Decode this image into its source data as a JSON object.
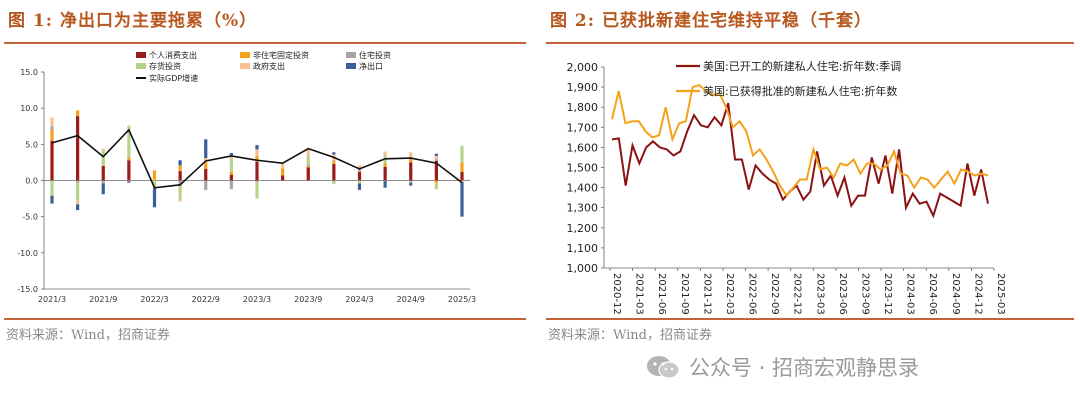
{
  "left": {
    "title": "图 1: 净出口为主要拖累（%）",
    "source": "资料来源：Wind，招商证券",
    "chart_data": {
      "type": "bar",
      "stacked": true,
      "categories": [
        "2021/3",
        "2021/6",
        "2021/9",
        "2021/12",
        "2022/3",
        "2022/6",
        "2022/9",
        "2022/12",
        "2023/3",
        "2023/6",
        "2023/9",
        "2023/12",
        "2024/3",
        "2024/6",
        "2024/9",
        "2024/12",
        "2025/3"
      ],
      "tick_labels": [
        "2021/3",
        "2021/9",
        "2022/3",
        "2022/9",
        "2023/3",
        "2023/9",
        "2024/3",
        "2024/9",
        "2025/3"
      ],
      "series": [
        {
          "name": "个人消费支出",
          "color": "#9c1a1a",
          "values": [
            5.5,
            8.9,
            2.0,
            2.8,
            0.0,
            1.3,
            1.6,
            0.8,
            2.6,
            0.7,
            1.8,
            2.3,
            1.2,
            1.9,
            2.5,
            2.7,
            1.2
          ]
        },
        {
          "name": "非住宅固定投资",
          "color": "#f5a21b",
          "values": [
            1.5,
            0.8,
            0.1,
            0.4,
            1.4,
            0.8,
            0.9,
            0.4,
            0.8,
            1.0,
            0.2,
            0.4,
            0.1,
            0.5,
            0.5,
            -0.3,
            1.3
          ]
        },
        {
          "name": "住宅投资",
          "color": "#a6a6a6",
          "values": [
            0.5,
            -0.3,
            -0.4,
            0.1,
            0.0,
            -0.8,
            -1.3,
            -1.2,
            -0.2,
            0.0,
            0.2,
            0.1,
            0.5,
            -0.1,
            -0.2,
            0.2,
            0.0
          ]
        },
        {
          "name": "存货投资",
          "color": "#b5d48a",
          "values": [
            -2.1,
            -2.5,
            2.0,
            4.3,
            -0.7,
            -1.8,
            0.0,
            1.6,
            -2.3,
            0.0,
            1.2,
            -0.5,
            -0.4,
            1.1,
            -0.1,
            -0.9,
            2.3
          ]
        },
        {
          "name": "政府支出",
          "color": "#f7c08f",
          "values": [
            1.2,
            -0.5,
            0.3,
            -0.1,
            -0.4,
            -0.3,
            0.6,
            0.7,
            0.9,
            0.6,
            1.0,
            0.8,
            0.3,
            0.5,
            0.9,
            0.5,
            -0.2
          ]
        },
        {
          "name": "净出口",
          "color": "#3a5f9a",
          "values": [
            -1.1,
            -0.8,
            -1.5,
            -0.2,
            -2.6,
            0.7,
            2.6,
            0.3,
            0.6,
            0.0,
            0.0,
            0.3,
            -0.9,
            -0.9,
            -0.4,
            0.3,
            -4.8
          ]
        }
      ],
      "line": {
        "name": "实际GDP增速",
        "color": "#111111",
        "values": [
          5.2,
          6.2,
          3.3,
          7.0,
          -1.0,
          -0.6,
          2.7,
          3.4,
          2.8,
          2.4,
          4.4,
          3.2,
          1.6,
          3.0,
          3.1,
          2.4,
          -0.3
        ]
      },
      "ylim": [
        -15,
        15
      ],
      "yticks": [
        "15.0",
        "10.0",
        "5.0",
        "0.0",
        "-5.0",
        "-10.0",
        "-15.0"
      ]
    }
  },
  "right": {
    "title": "图 2: 已获批新建住宅维持平稳（千套）",
    "source": "资料来源：Wind，招商证券",
    "chart_data": {
      "type": "line",
      "x_tick_labels": [
        "2020-12",
        "2021-03",
        "2021-06",
        "2021-09",
        "2021-12",
        "2022-03",
        "2022-06",
        "2022-09",
        "2022-12",
        "2023-03",
        "2023-06",
        "2023-09",
        "2023-12",
        "2024-03",
        "2024-06",
        "2024-09",
        "2024-12",
        "2025-03"
      ],
      "ylim": [
        1000,
        2000
      ],
      "yticks": [
        "2,000",
        "1,900",
        "1,800",
        "1,700",
        "1,600",
        "1,500",
        "1,400",
        "1,300",
        "1,200",
        "1,100",
        "1,000"
      ],
      "series": [
        {
          "name": "美国:已开工的新建私人住宅:折年数:季调",
          "color": "#8b1212",
          "values": [
            1640,
            1645,
            1410,
            1610,
            1520,
            1600,
            1630,
            1600,
            1590,
            1560,
            1580,
            1680,
            1760,
            1710,
            1700,
            1750,
            1710,
            1820,
            1540,
            1540,
            1390,
            1510,
            1470,
            1440,
            1420,
            1340,
            1380,
            1410,
            1340,
            1380,
            1580,
            1410,
            1460,
            1360,
            1450,
            1310,
            1360,
            1360,
            1550,
            1420,
            1560,
            1370,
            1590,
            1300,
            1370,
            1320,
            1330,
            1260,
            1370,
            1350,
            1330,
            1310,
            1520,
            1360,
            1490,
            1320
          ]
        },
        {
          "name": "美国:已获得批准的新建私人住宅:折年数",
          "color": "#f5a21b",
          "values": [
            1740,
            1880,
            1720,
            1730,
            1730,
            1680,
            1650,
            1660,
            1800,
            1640,
            1720,
            1730,
            1900,
            1910,
            1880,
            1860,
            1870,
            1800,
            1700,
            1730,
            1680,
            1560,
            1590,
            1540,
            1480,
            1410,
            1360,
            1400,
            1440,
            1440,
            1590,
            1490,
            1500,
            1450,
            1520,
            1510,
            1540,
            1470,
            1520,
            1520,
            1490,
            1510,
            1580,
            1470,
            1460,
            1400,
            1450,
            1440,
            1400,
            1440,
            1480,
            1420,
            1490,
            1480,
            1460,
            1470,
            1460
          ]
        }
      ]
    }
  },
  "watermark": "公众号 · 招商宏观静思录"
}
